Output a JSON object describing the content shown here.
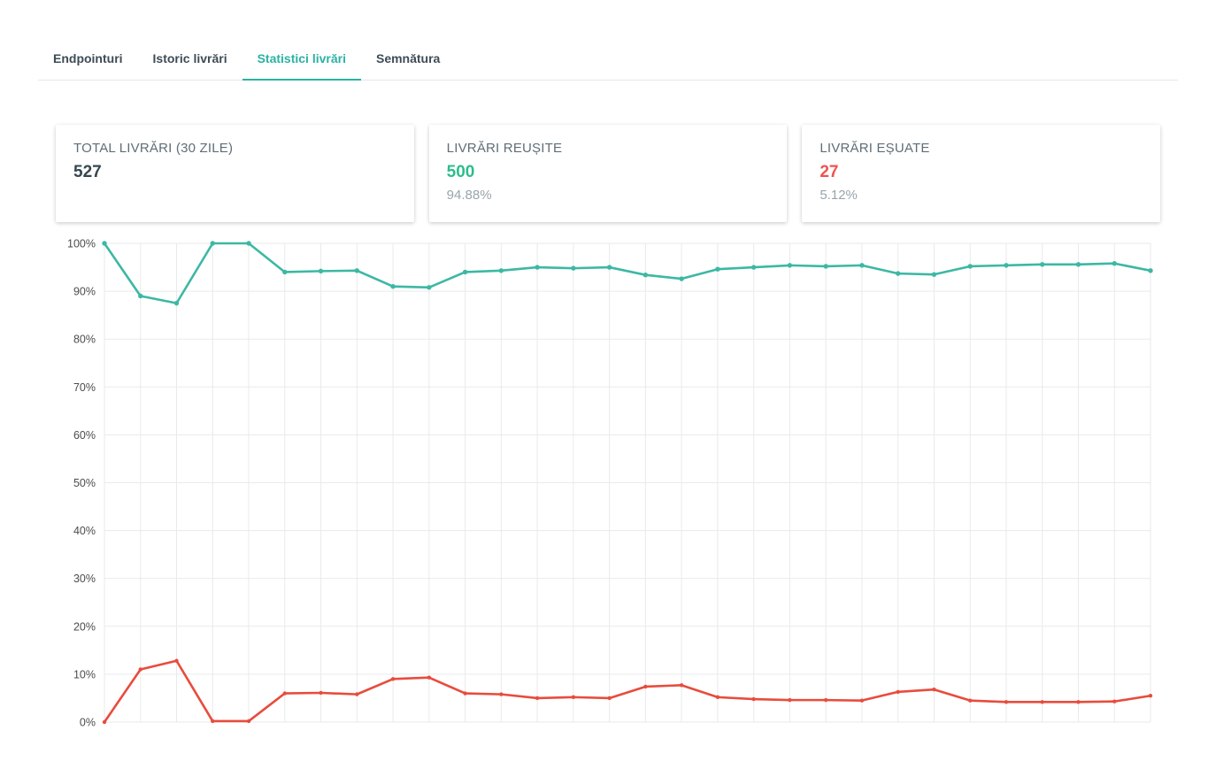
{
  "tabs": {
    "items": [
      {
        "label": "Endpointuri",
        "active": false
      },
      {
        "label": "Istoric livrări",
        "active": false
      },
      {
        "label": "Statistici livrări",
        "active": true
      },
      {
        "label": "Semnătura",
        "active": false
      }
    ]
  },
  "cards": [
    {
      "title": "TOTAL LIVRĂRI (30 ZILE)",
      "value": "527",
      "percent": "",
      "value_color": "#37474f"
    },
    {
      "title": "LIVRĂRI REUȘITE",
      "value": "500",
      "percent": "94.88%",
      "value_color": "#2dbd8c"
    },
    {
      "title": "LIVRĂRI EȘUATE",
      "value": "27",
      "percent": "5.12%",
      "value_color": "#ef5350"
    }
  ],
  "chart_data": {
    "type": "line",
    "title": "",
    "xlabel": "",
    "ylabel": "",
    "ylim": [
      0,
      100
    ],
    "grid": true,
    "legend_position": "none",
    "yticks": [
      "0%",
      "10%",
      "20%",
      "30%",
      "40%",
      "50%",
      "60%",
      "70%",
      "80%",
      "90%",
      "100%"
    ],
    "series": [
      {
        "name": "success_rate_percent",
        "color": "#3cb8a4",
        "values": [
          100,
          89,
          87.5,
          100,
          100,
          94,
          94.2,
          94.3,
          91,
          90.8,
          94,
          94.3,
          95,
          94.8,
          95,
          93.4,
          92.6,
          94.6,
          95,
          95.4,
          95.2,
          95.4,
          93.7,
          93.5,
          95.2,
          95.4,
          95.6,
          95.6,
          95.8,
          94.3
        ]
      },
      {
        "name": "failure_rate_percent",
        "color": "#e84c3c",
        "values": [
          0,
          11,
          12.8,
          0.2,
          0.2,
          6,
          6.1,
          5.8,
          9,
          9.3,
          6,
          5.8,
          5,
          5.2,
          5,
          7.4,
          7.7,
          5.2,
          4.8,
          4.6,
          4.6,
          4.5,
          6.3,
          6.8,
          4.5,
          4.2,
          4.2,
          4.2,
          4.3,
          5.5
        ]
      }
    ]
  },
  "colors": {
    "tab_active": "#2bb2a3",
    "grid_line": "#e9eaec",
    "tick_text": "#4c4c4c"
  }
}
